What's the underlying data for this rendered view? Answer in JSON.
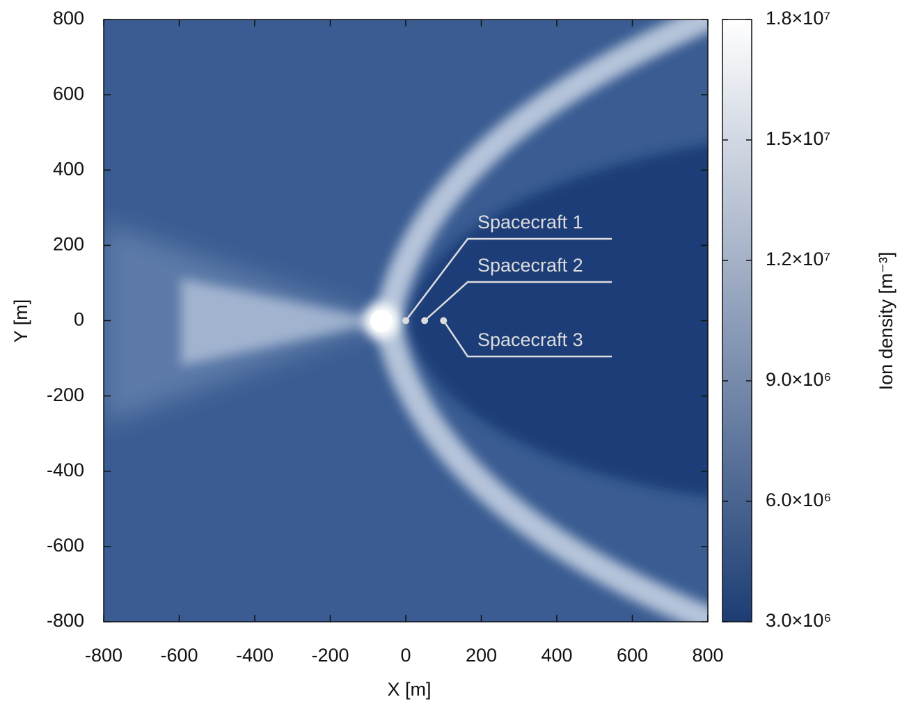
{
  "chart_data": {
    "type": "heatmap",
    "xlabel": "X [m]",
    "ylabel": "Y [m]",
    "xlim": [
      -800,
      800
    ],
    "xticks": [
      -800,
      -600,
      -400,
      -200,
      0,
      200,
      400,
      600,
      800
    ],
    "ylim": [
      -800,
      800
    ],
    "yticks": [
      -800,
      -600,
      -400,
      -200,
      0,
      200,
      400,
      600,
      800
    ],
    "colorbar_label": "Ion density [m⁻³]",
    "colormap": [
      "#1c3d74",
      "#ffffff"
    ],
    "clim": [
      3000000,
      18000000
    ],
    "cticks": [
      {
        "value": 3000000,
        "label": "3.0×10⁶"
      },
      {
        "value": 6000000,
        "label": "6.0×10⁶"
      },
      {
        "value": 9000000,
        "label": "9.0×10⁶"
      },
      {
        "value": 12000000,
        "label": "1.2×10⁷"
      },
      {
        "value": 15000000,
        "label": "1.5×10⁷"
      },
      {
        "value": 18000000,
        "label": "1.8×10⁷"
      }
    ],
    "markers": [
      {
        "name": "Spacecraft 1",
        "x": 0,
        "y": 0
      },
      {
        "name": "Spacecraft 2",
        "x": 50,
        "y": 0
      },
      {
        "name": "Spacecraft 3",
        "x": 100,
        "y": 0
      }
    ],
    "marker_color": "#dddddd"
  }
}
